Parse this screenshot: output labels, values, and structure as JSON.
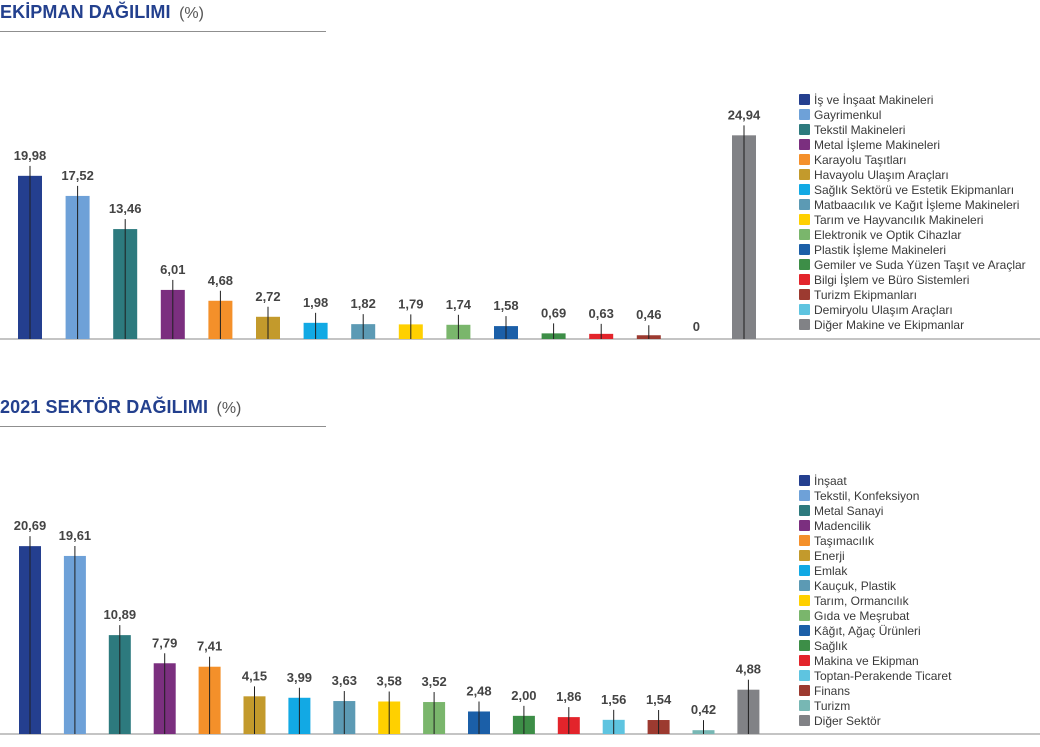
{
  "chart_data": [
    {
      "type": "bar",
      "title": "EKİPMAN DAĞILIMI",
      "title_suffix": "(%)",
      "xlabel": "",
      "ylabel": "",
      "ylim": [
        0,
        30
      ],
      "grid": false,
      "legend_position": "right",
      "categories": [
        "İş ve İnşaat Makineleri",
        "Gayrimenkul",
        "Tekstil Makineleri",
        "Metal İşleme Makineleri",
        "Karayolu Taşıtları",
        "Havayolu Ulaşım Araçları",
        "Sağlık Sektörü ve Estetik Ekipmanları",
        "Matbaacılık ve Kağıt İşleme Makineleri",
        "Tarım ve Hayvancılık Makineleri",
        "Elektronik ve Optik Cihazlar",
        "Plastik İşleme Makineleri",
        "Gemiler ve Suda Yüzen Taşıt ve Araçlar",
        "Bilgi İşlem ve Büro Sistemleri",
        "Turizm Ekipmanları",
        "Demiryolu Ulaşım Araçları",
        "Diğer Makine ve Ekipmanlar"
      ],
      "values": [
        19.98,
        17.52,
        13.46,
        6.01,
        4.68,
        2.72,
        1.98,
        1.82,
        1.79,
        1.74,
        1.58,
        0.69,
        0.63,
        0.46,
        0,
        24.94
      ],
      "value_labels": [
        "19,98",
        "17,52",
        "13,46",
        "6,01",
        "4,68",
        "2,72",
        "1,98",
        "1,82",
        "1,79",
        "1,74",
        "1,58",
        "0,69",
        "0,63",
        "0,46",
        "0",
        "24,94"
      ],
      "colors": [
        "#243f8f",
        "#6ea1d8",
        "#2d7a7e",
        "#7b2f7f",
        "#f4902a",
        "#c39a2c",
        "#12a9e4",
        "#5c9ab4",
        "#ffd000",
        "#7ab66c",
        "#1b5fa8",
        "#3d8e47",
        "#e3242b",
        "#9c3a30",
        "#5ec4e0",
        "#818286"
      ]
    },
    {
      "type": "bar",
      "title": "2021 SEKTÖR DAĞILIMI",
      "title_suffix": "(%)",
      "xlabel": "",
      "ylabel": "",
      "ylim": [
        0,
        25
      ],
      "grid": false,
      "legend_position": "right",
      "categories": [
        "İnşaat",
        "Tekstil, Konfeksiyon",
        "Metal Sanayi",
        "Madencilik",
        "Taşımacılık",
        "Enerji",
        "Emlak",
        "Kauçuk, Plastik",
        "Tarım, Ormancılık",
        "Gıda ve Meşrubat",
        "Kâğıt, Ağaç Ürünleri",
        "Sağlık",
        "Makina ve Ekipman",
        "Toptan-Perakende Ticaret",
        "Finans",
        "Turizm",
        "Diğer Sektör"
      ],
      "values": [
        20.69,
        19.61,
        10.89,
        7.79,
        7.41,
        4.15,
        3.99,
        3.63,
        3.58,
        3.52,
        2.48,
        2.0,
        1.86,
        1.56,
        1.54,
        0.42,
        4.88
      ],
      "value_labels": [
        "20,69",
        "19,61",
        "10,89",
        "7,79",
        "7,41",
        "4,15",
        "3,99",
        "3,63",
        "3,58",
        "3,52",
        "2,48",
        "2,00",
        "1,86",
        "1,56",
        "1,54",
        "0,42",
        "4,88"
      ],
      "colors": [
        "#243f8f",
        "#6ea1d8",
        "#2d7a7e",
        "#7b2f7f",
        "#f4902a",
        "#c39a2c",
        "#12a9e4",
        "#5c9ab4",
        "#ffd000",
        "#7ab66c",
        "#1b5fa8",
        "#3d8e47",
        "#e3242b",
        "#5ec4e0",
        "#9c3a30",
        "#77b7b4",
        "#818286"
      ]
    }
  ]
}
